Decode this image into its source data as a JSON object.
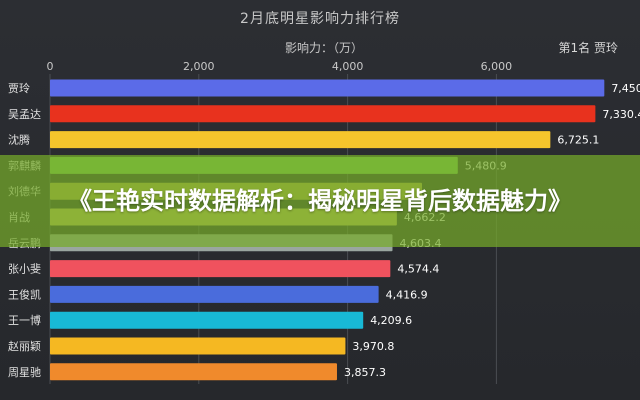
{
  "chart_data": {
    "type": "bar",
    "orientation": "horizontal",
    "title": "2月底明星影响力排行榜",
    "xlabel": "影响力：（万）",
    "top_label": "第1名 贾玲",
    "xlim": [
      0,
      7500
    ],
    "xticks": [
      0,
      2000,
      4000,
      6000
    ],
    "xtick_labels": [
      "0",
      "2,000",
      "4,000",
      "6,000"
    ],
    "grid": true,
    "categories": [
      "贾玲",
      "吴孟达",
      "沈腾",
      "郭麒麟",
      "刘德华",
      "肖战",
      "岳云鹏",
      "张小斐",
      "王俊凯",
      "王一博",
      "赵丽颖",
      "周星驰"
    ],
    "values": [
      7450.6,
      7330.4,
      6725.1,
      5480.9,
      5000.0,
      4662.2,
      4603.4,
      4574.4,
      4416.9,
      4209.6,
      3970.8,
      3857.3
    ],
    "value_labels": [
      "7,450.6",
      "7,330.4",
      "6,725.1",
      "5,480.9",
      "",
      "4,662.2",
      "4,603.4",
      "4,574.4",
      "4,416.9",
      "4,209.6",
      "3,970.8",
      "3,857.3"
    ],
    "colors": [
      "#5b6be8",
      "#e8321e",
      "#f5c52c",
      "#7ed352",
      "#b8b44a",
      "#c8c45a",
      "#9aa6a0",
      "#f0525e",
      "#4a6cdc",
      "#18b9d6",
      "#f5b822",
      "#f08a2c"
    ]
  },
  "overlay": {
    "headline": "《王艳实时数据解析：揭秘明星背后数据魅力》",
    "background": "#76aa2a"
  }
}
